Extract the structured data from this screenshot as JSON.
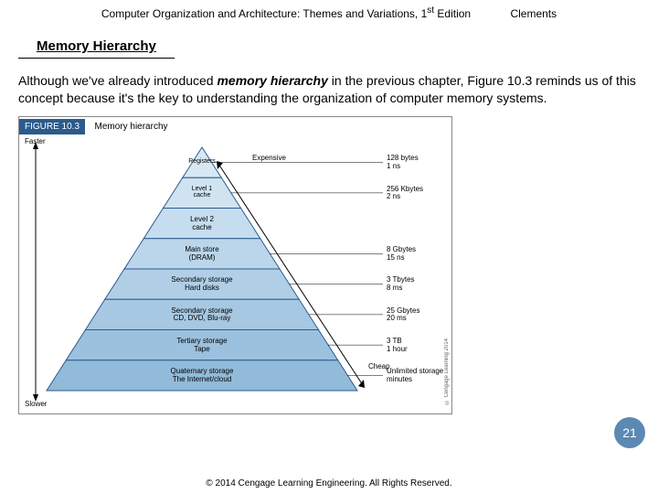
{
  "header": {
    "book_title": "Computer Organization and Architecture: Themes and Variations, 1",
    "edition_suffix": "st",
    "edition_word": " Edition",
    "author": "Clements"
  },
  "section": {
    "title": "Memory Hierarchy"
  },
  "paragraph": {
    "pre": "Although we've already introduced ",
    "em": "memory hierarchy",
    "post": " in the previous chapter, Figure 10.3 reminds us of this concept because it's the key to understanding the organization of computer memory systems."
  },
  "figure": {
    "number": "FIGURE 10.3",
    "caption": "Memory hierarchy",
    "axis_top": "Faster",
    "axis_bottom": "Slower",
    "cost_top": "Expensive",
    "cost_bottom": "Cheap",
    "colors": {
      "line": "#2b5b8c",
      "fills": [
        "#d7e8f4",
        "#cfe3f1",
        "#c5ddee",
        "#bbd6ea",
        "#b0cfe6",
        "#a6c8e2",
        "#9cc1de",
        "#92bad9"
      ]
    },
    "tiers": [
      {
        "label": "Registers",
        "size": "128 bytes",
        "time": "1 ns"
      },
      {
        "label": "Level 1\ncache",
        "size": "256 Kbytes",
        "time": "2 ns"
      },
      {
        "label": "Level 2\ncache",
        "size": "",
        "time": ""
      },
      {
        "label": "Main store\n(DRAM)",
        "size": "8 Gbytes",
        "time": "15 ns"
      },
      {
        "label": "Secondary storage\nHard disks",
        "size": "3 Tbytes",
        "time": "8 ms"
      },
      {
        "label": "Secondary storage\nCD, DVD, Blu-ray",
        "size": "25 Gbytes",
        "time": "20 ms"
      },
      {
        "label": "Tertiary storage\nTape",
        "size": "3 TB",
        "time": "1 hour"
      },
      {
        "label": "Quaternary storage\nThe Internet/cloud",
        "size": "Unlimited storage",
        "time": "minutes"
      }
    ],
    "side_copyright": "© Cengage Learning 2014"
  },
  "page_number": "21",
  "footer": "© 2014 Cengage Learning Engineering. All Rights Reserved."
}
